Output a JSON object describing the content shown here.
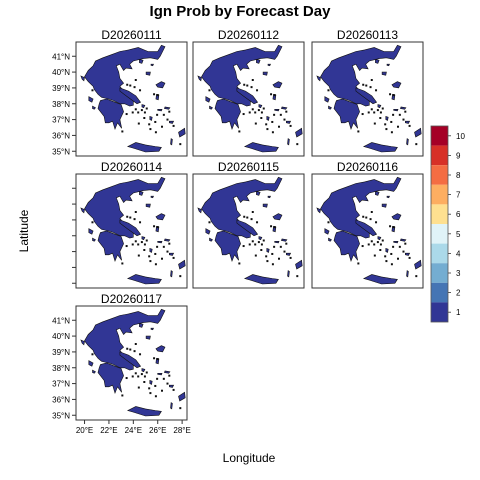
{
  "chart_data": {
    "type": "heatmap",
    "title": "Ign Prob by Forecast Day",
    "xlabel": "Longitude",
    "ylabel": "Latitude",
    "panels": [
      {
        "label": "D20260111",
        "value_class": 1
      },
      {
        "label": "D20260112",
        "value_class": 1
      },
      {
        "label": "D20260113",
        "value_class": 1
      },
      {
        "label": "D20260114",
        "value_class": 1
      },
      {
        "label": "D20260115",
        "value_class": 1
      },
      {
        "label": "D20260116",
        "value_class": 1
      },
      {
        "label": "D20260117",
        "value_class": 1
      }
    ],
    "x_ticks": [
      "20°E",
      "22°E",
      "24°E",
      "26°E",
      "28°E"
    ],
    "x_values": [
      20,
      22,
      24,
      26,
      28
    ],
    "y_ticks": [
      "35°N",
      "36°N",
      "37°N",
      "38°N",
      "39°N",
      "40°N",
      "41°N"
    ],
    "y_values": [
      35,
      36,
      37,
      38,
      39,
      40,
      41
    ],
    "xlim": [
      19.3,
      28.4
    ],
    "ylim": [
      34.7,
      41.9
    ],
    "legend": {
      "placement": "right",
      "labels": [
        "1",
        "2",
        "3",
        "4",
        "5",
        "6",
        "7",
        "8",
        "9",
        "10"
      ],
      "colors": [
        "#313695",
        "#4575b4",
        "#74add1",
        "#abd9e9",
        "#e0f3f8",
        "#fee090",
        "#fdae61",
        "#f46d43",
        "#d73027",
        "#a50026"
      ]
    },
    "fill_color": "#32379a"
  }
}
